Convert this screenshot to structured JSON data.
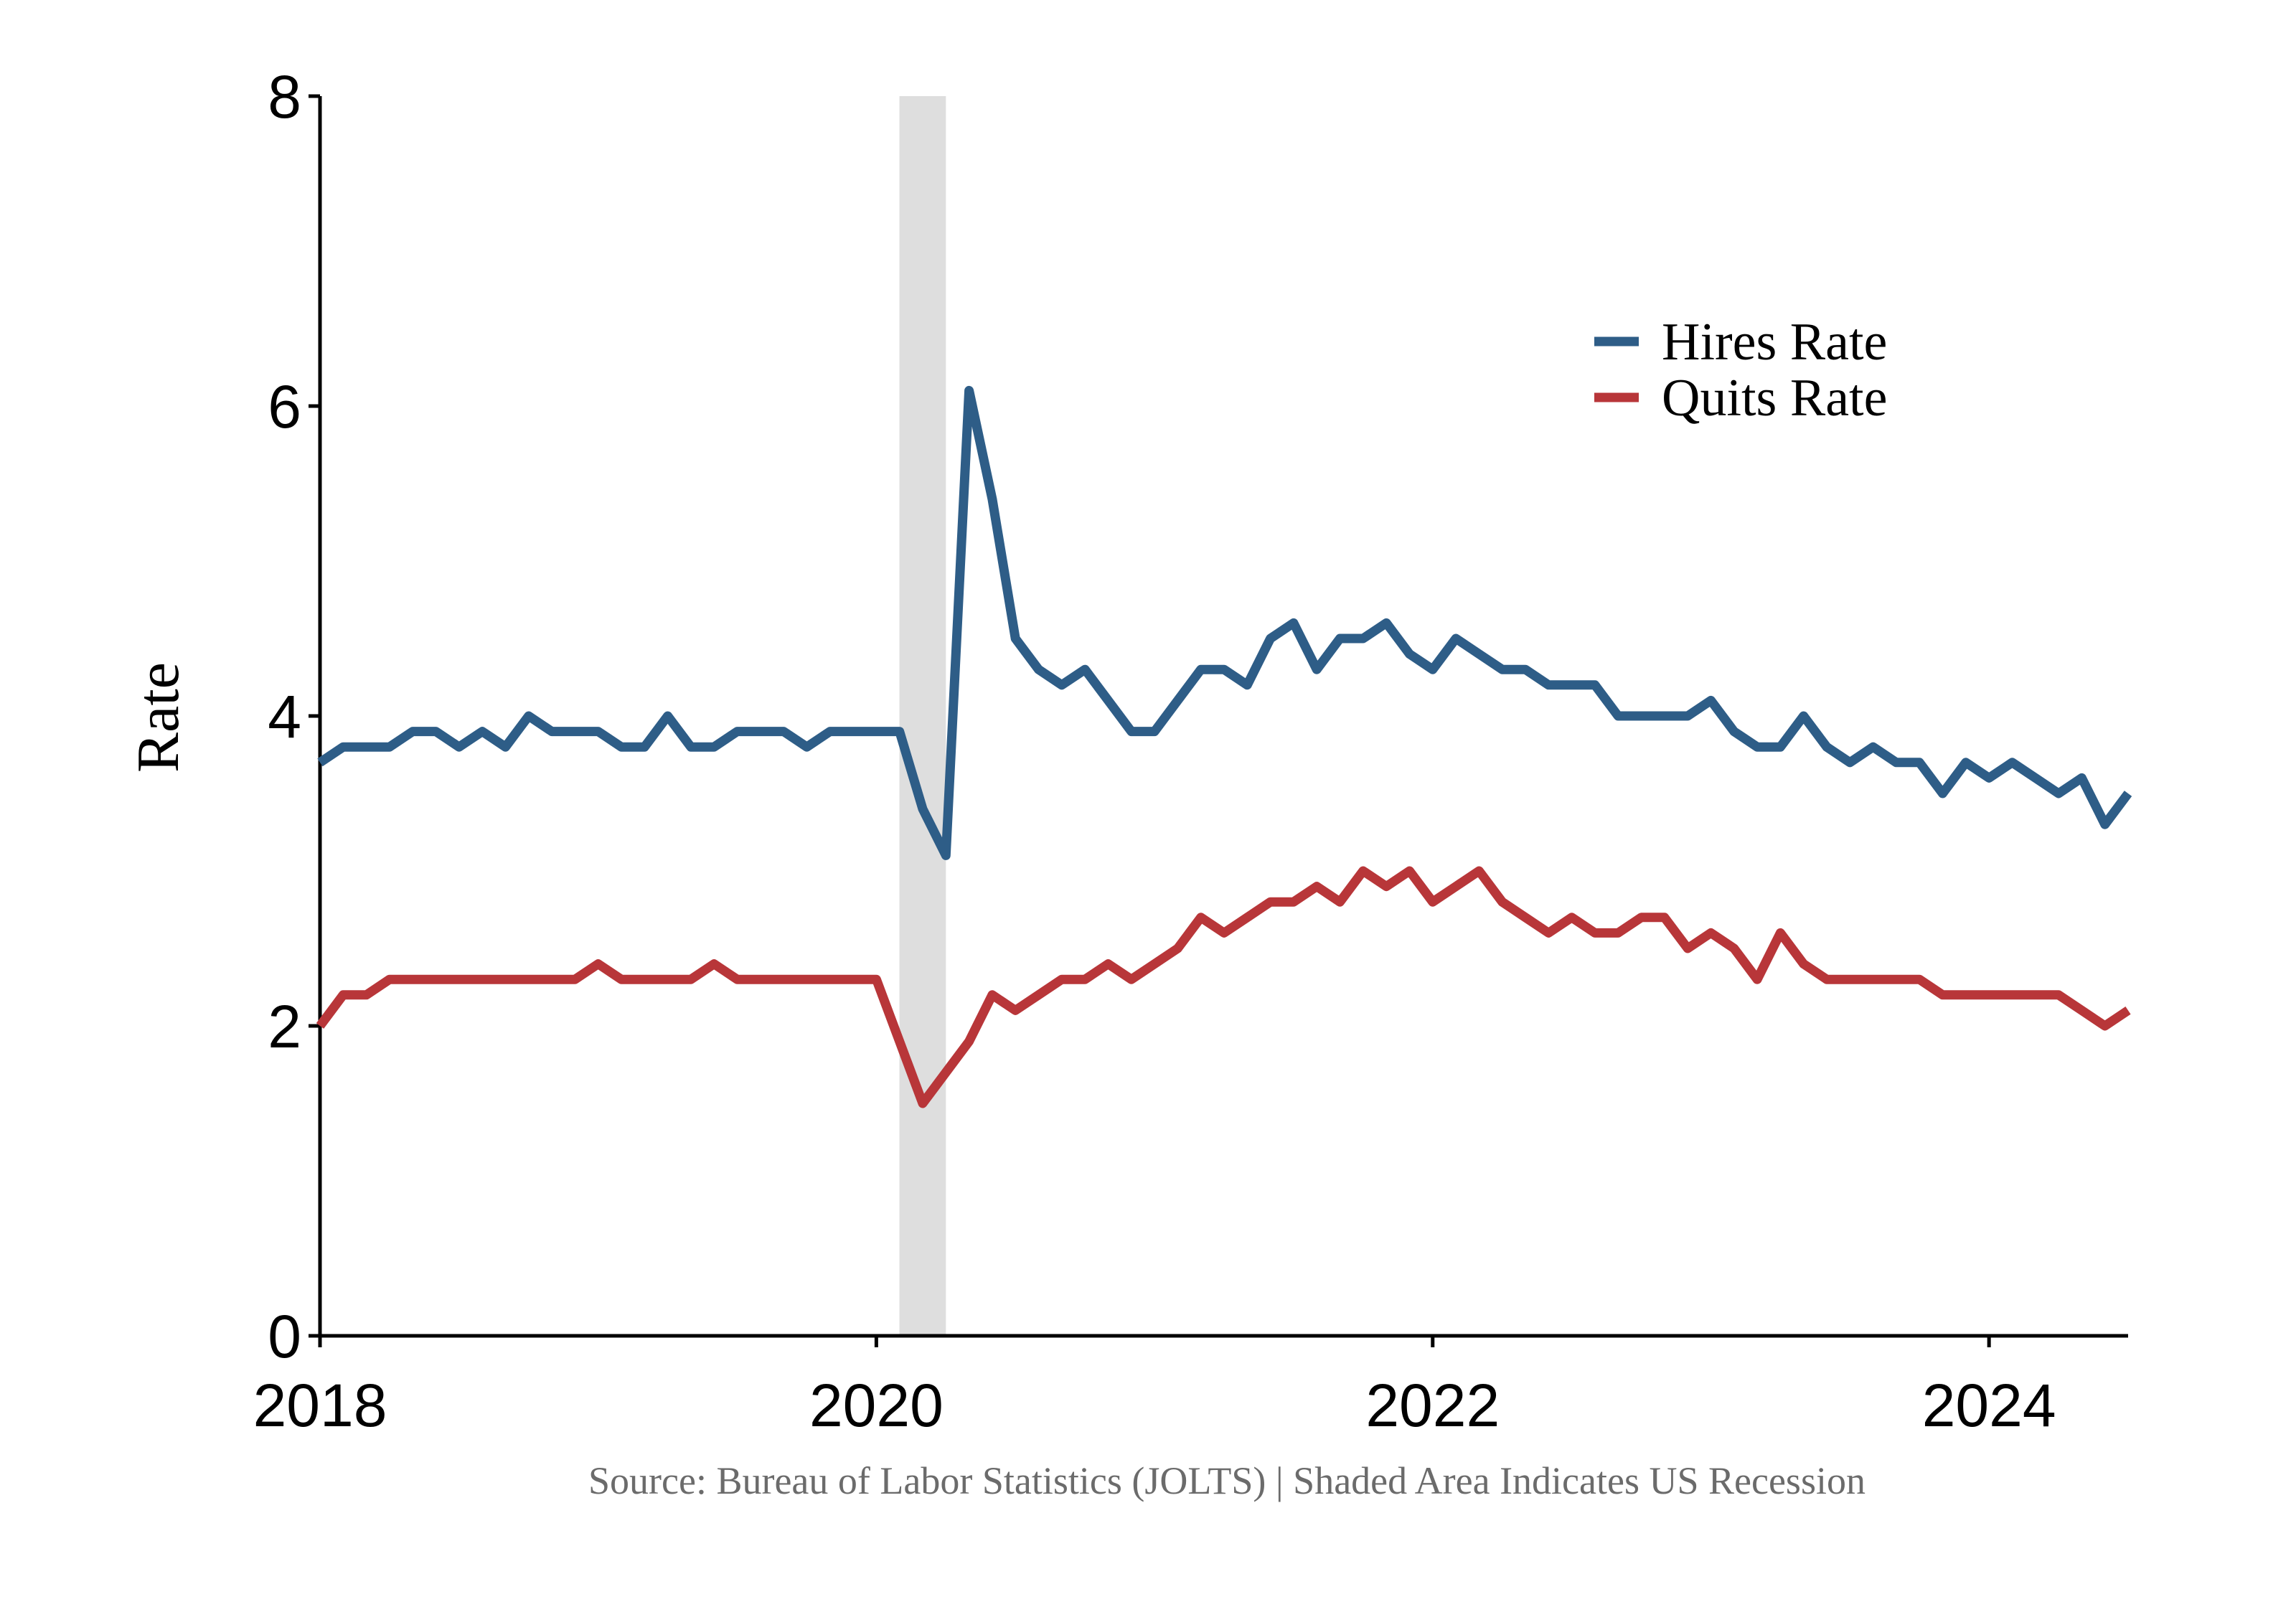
{
  "chart_data": {
    "type": "line",
    "xlabel": "",
    "ylabel": "Rate",
    "xlim": [
      2018.0,
      2024.5
    ],
    "ylim": [
      0,
      8
    ],
    "x_ticks": [
      2018,
      2020,
      2022,
      2024
    ],
    "y_ticks": [
      0,
      2,
      4,
      6,
      8
    ],
    "x_start": 2018.0,
    "x_step_months": 1,
    "legend_position": "top-right",
    "grid": false,
    "recession": {
      "start": 2020.083,
      "end": 2020.25,
      "color": "#dedede"
    },
    "series": [
      {
        "name": "Hires Rate",
        "color": "#2e5d87",
        "values": [
          3.7,
          3.8,
          3.8,
          3.8,
          3.9,
          3.9,
          3.8,
          3.9,
          3.8,
          4.0,
          3.9,
          3.9,
          3.9,
          3.8,
          3.8,
          4.0,
          3.8,
          3.8,
          3.9,
          3.9,
          3.9,
          3.8,
          3.9,
          3.9,
          3.9,
          3.9,
          3.4,
          3.1,
          6.1,
          5.4,
          4.5,
          4.3,
          4.2,
          4.3,
          4.1,
          3.9,
          3.9,
          4.1,
          4.3,
          4.3,
          4.2,
          4.5,
          4.6,
          4.3,
          4.5,
          4.5,
          4.6,
          4.4,
          4.3,
          4.5,
          4.4,
          4.3,
          4.3,
          4.2,
          4.2,
          4.2,
          4.0,
          4.0,
          4.0,
          4.0,
          4.1,
          3.9,
          3.8,
          3.8,
          4.0,
          3.8,
          3.7,
          3.8,
          3.7,
          3.7,
          3.5,
          3.7,
          3.6,
          3.7,
          3.6,
          3.5,
          3.6,
          3.3,
          3.5
        ]
      },
      {
        "name": "Quits Rate",
        "color": "#b83639",
        "values": [
          2.0,
          2.2,
          2.2,
          2.3,
          2.3,
          2.3,
          2.3,
          2.3,
          2.3,
          2.3,
          2.3,
          2.3,
          2.4,
          2.3,
          2.3,
          2.3,
          2.3,
          2.4,
          2.3,
          2.3,
          2.3,
          2.3,
          2.3,
          2.3,
          2.3,
          1.9,
          1.5,
          1.7,
          1.9,
          2.2,
          2.1,
          2.2,
          2.3,
          2.3,
          2.4,
          2.3,
          2.4,
          2.5,
          2.7,
          2.6,
          2.7,
          2.8,
          2.8,
          2.9,
          2.8,
          3.0,
          2.9,
          3.0,
          2.8,
          2.9,
          3.0,
          2.8,
          2.7,
          2.6,
          2.7,
          2.6,
          2.6,
          2.7,
          2.7,
          2.5,
          2.6,
          2.5,
          2.3,
          2.6,
          2.4,
          2.3,
          2.3,
          2.3,
          2.3,
          2.3,
          2.2,
          2.2,
          2.2,
          2.2,
          2.2,
          2.2,
          2.1,
          2.0,
          2.1
        ]
      }
    ],
    "caption": "Source: Bureau of Labor Statistics (JOLTS) | Shaded Area Indicates US Recession"
  }
}
